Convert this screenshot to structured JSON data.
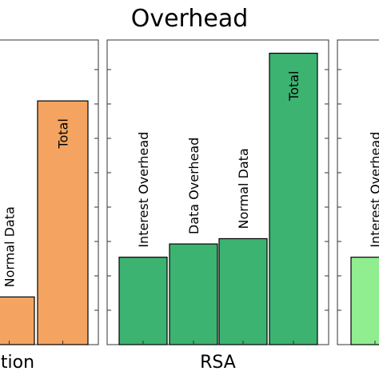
{
  "title": "Overhead",
  "chart_data": [
    {
      "type": "bar",
      "panel_label": "tion",
      "color": "#f4a460",
      "categories": [
        "Normal Data",
        "Total"
      ],
      "values": [
        1.8,
        9.2
      ],
      "ylim": [
        0,
        11.5
      ],
      "grid": false
    },
    {
      "type": "bar",
      "panel_label": "RSA",
      "color": "#3cb371",
      "categories": [
        "Interest Overhead",
        "Data Overhead",
        "Normal Data",
        "Total"
      ],
      "values": [
        3.3,
        3.8,
        4.0,
        11.0
      ],
      "ylim": [
        0,
        11.5
      ],
      "grid": false
    },
    {
      "type": "bar",
      "panel_label": "",
      "color": "#90ee90",
      "categories": [
        "Interest Overhead"
      ],
      "values": [
        3.3
      ],
      "ylim": [
        0,
        11.5
      ],
      "grid": false
    }
  ]
}
